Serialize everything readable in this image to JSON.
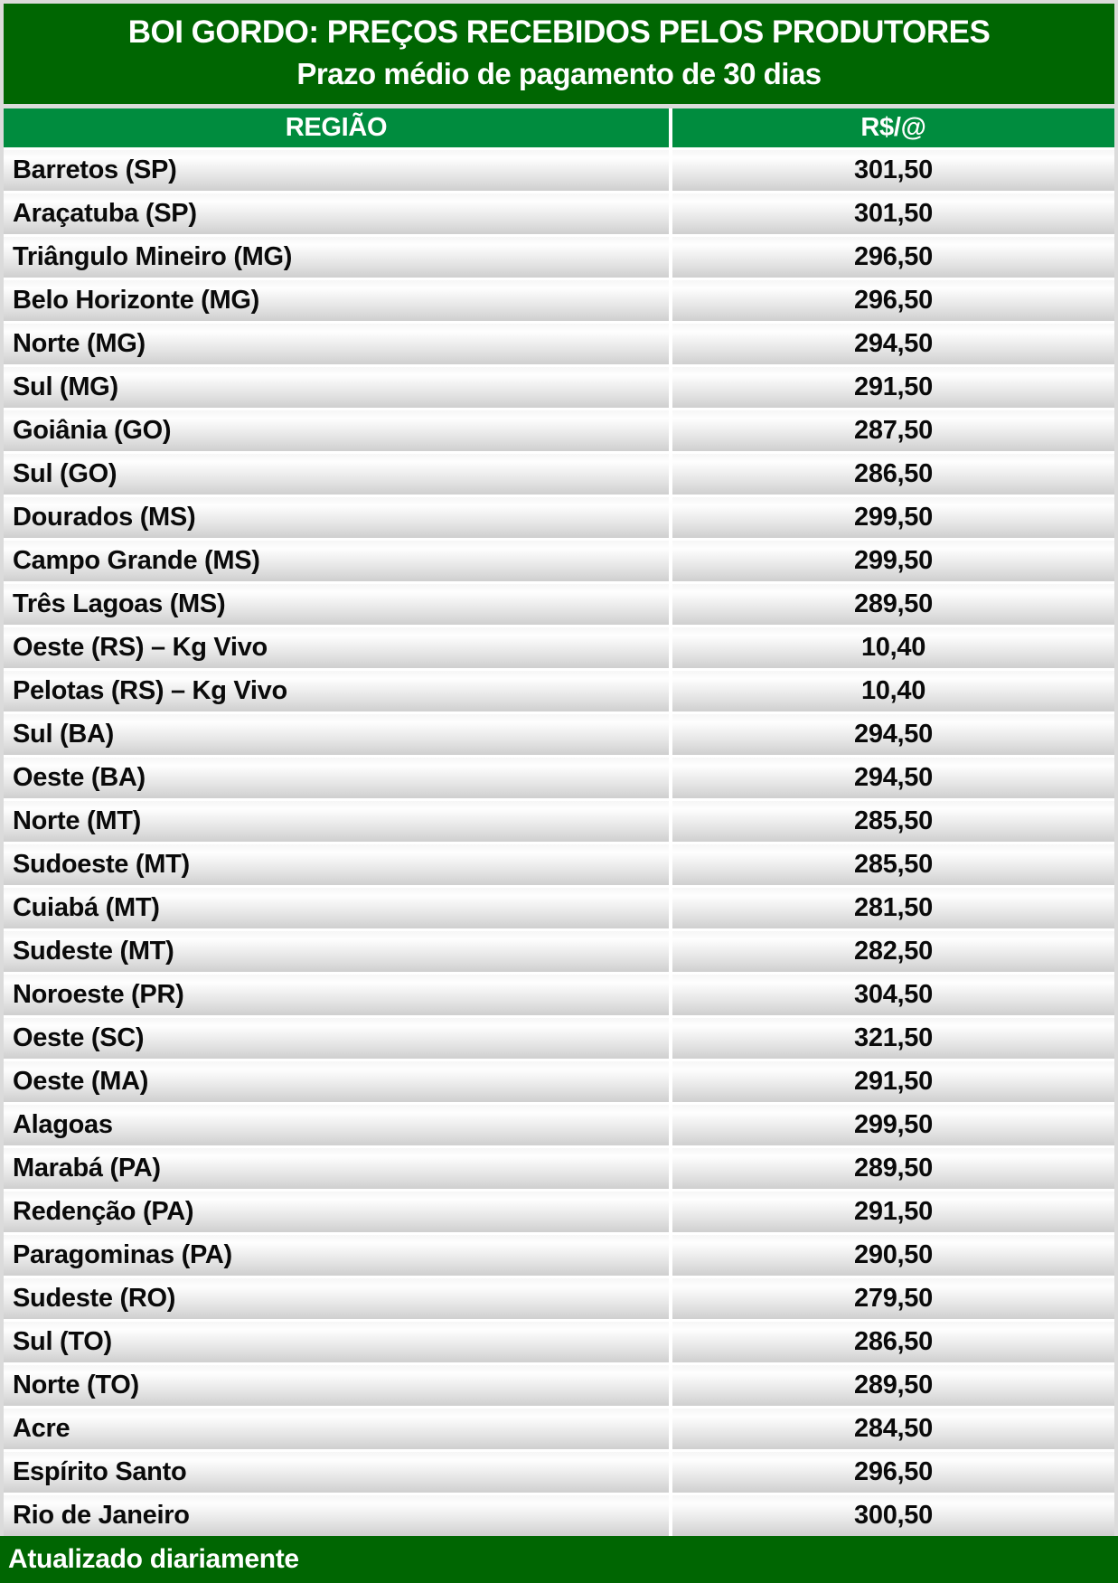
{
  "header": {
    "title_line1": "BOI GORDO: PREÇOS RECEBIDOS PELOS PRODUTORES",
    "title_line2": "Prazo médio de pagamento de 30 dias"
  },
  "table": {
    "col_region": "REGIÃO",
    "col_price": "R$/@"
  },
  "footer": {
    "text": "Atualizado diariamente"
  },
  "colors": {
    "banner_green": "#006602",
    "header_green": "#008c3e",
    "border_gray": "#dbdbdb",
    "row_gradient_top": "#f6f6f6",
    "row_gradient_bottom": "#cfcfcf",
    "row_text": "#0a0a0a",
    "header_text": "#ffffff"
  },
  "chart_data": {
    "type": "table",
    "title": "BOI GORDO: PREÇOS RECEBIDOS PELOS PRODUTORES",
    "subtitle": "Prazo médio de pagamento de 30 dias",
    "columns": [
      "REGIÃO",
      "R$/@"
    ],
    "rows": [
      [
        "Barretos (SP)",
        "301,50"
      ],
      [
        "Araçatuba (SP)",
        "301,50"
      ],
      [
        "Triângulo Mineiro (MG)",
        "296,50"
      ],
      [
        "Belo Horizonte (MG)",
        "296,50"
      ],
      [
        "Norte (MG)",
        "294,50"
      ],
      [
        "Sul (MG)",
        "291,50"
      ],
      [
        "Goiânia (GO)",
        "287,50"
      ],
      [
        "Sul (GO)",
        "286,50"
      ],
      [
        "Dourados (MS)",
        "299,50"
      ],
      [
        "Campo Grande (MS)",
        "299,50"
      ],
      [
        "Três Lagoas (MS)",
        "289,50"
      ],
      [
        "Oeste (RS) – Kg Vivo",
        "10,40"
      ],
      [
        "Pelotas (RS) – Kg Vivo",
        "10,40"
      ],
      [
        "Sul (BA)",
        "294,50"
      ],
      [
        "Oeste (BA)",
        "294,50"
      ],
      [
        "Norte (MT)",
        "285,50"
      ],
      [
        "Sudoeste (MT)",
        "285,50"
      ],
      [
        "Cuiabá (MT)",
        "281,50"
      ],
      [
        "Sudeste (MT)",
        "282,50"
      ],
      [
        "Noroeste (PR)",
        "304,50"
      ],
      [
        "Oeste (SC)",
        "321,50"
      ],
      [
        "Oeste (MA)",
        "291,50"
      ],
      [
        "Alagoas",
        "299,50"
      ],
      [
        "Marabá (PA)",
        "289,50"
      ],
      [
        "Redenção (PA)",
        "291,50"
      ],
      [
        "Paragominas (PA)",
        "290,50"
      ],
      [
        "Sudeste (RO)",
        "279,50"
      ],
      [
        "Sul (TO)",
        "286,50"
      ],
      [
        "Norte (TO)",
        "289,50"
      ],
      [
        "Acre",
        "284,50"
      ],
      [
        "Espírito Santo",
        "296,50"
      ],
      [
        "Rio de Janeiro",
        "300,50"
      ]
    ],
    "footer": "Atualizado diariamente"
  }
}
